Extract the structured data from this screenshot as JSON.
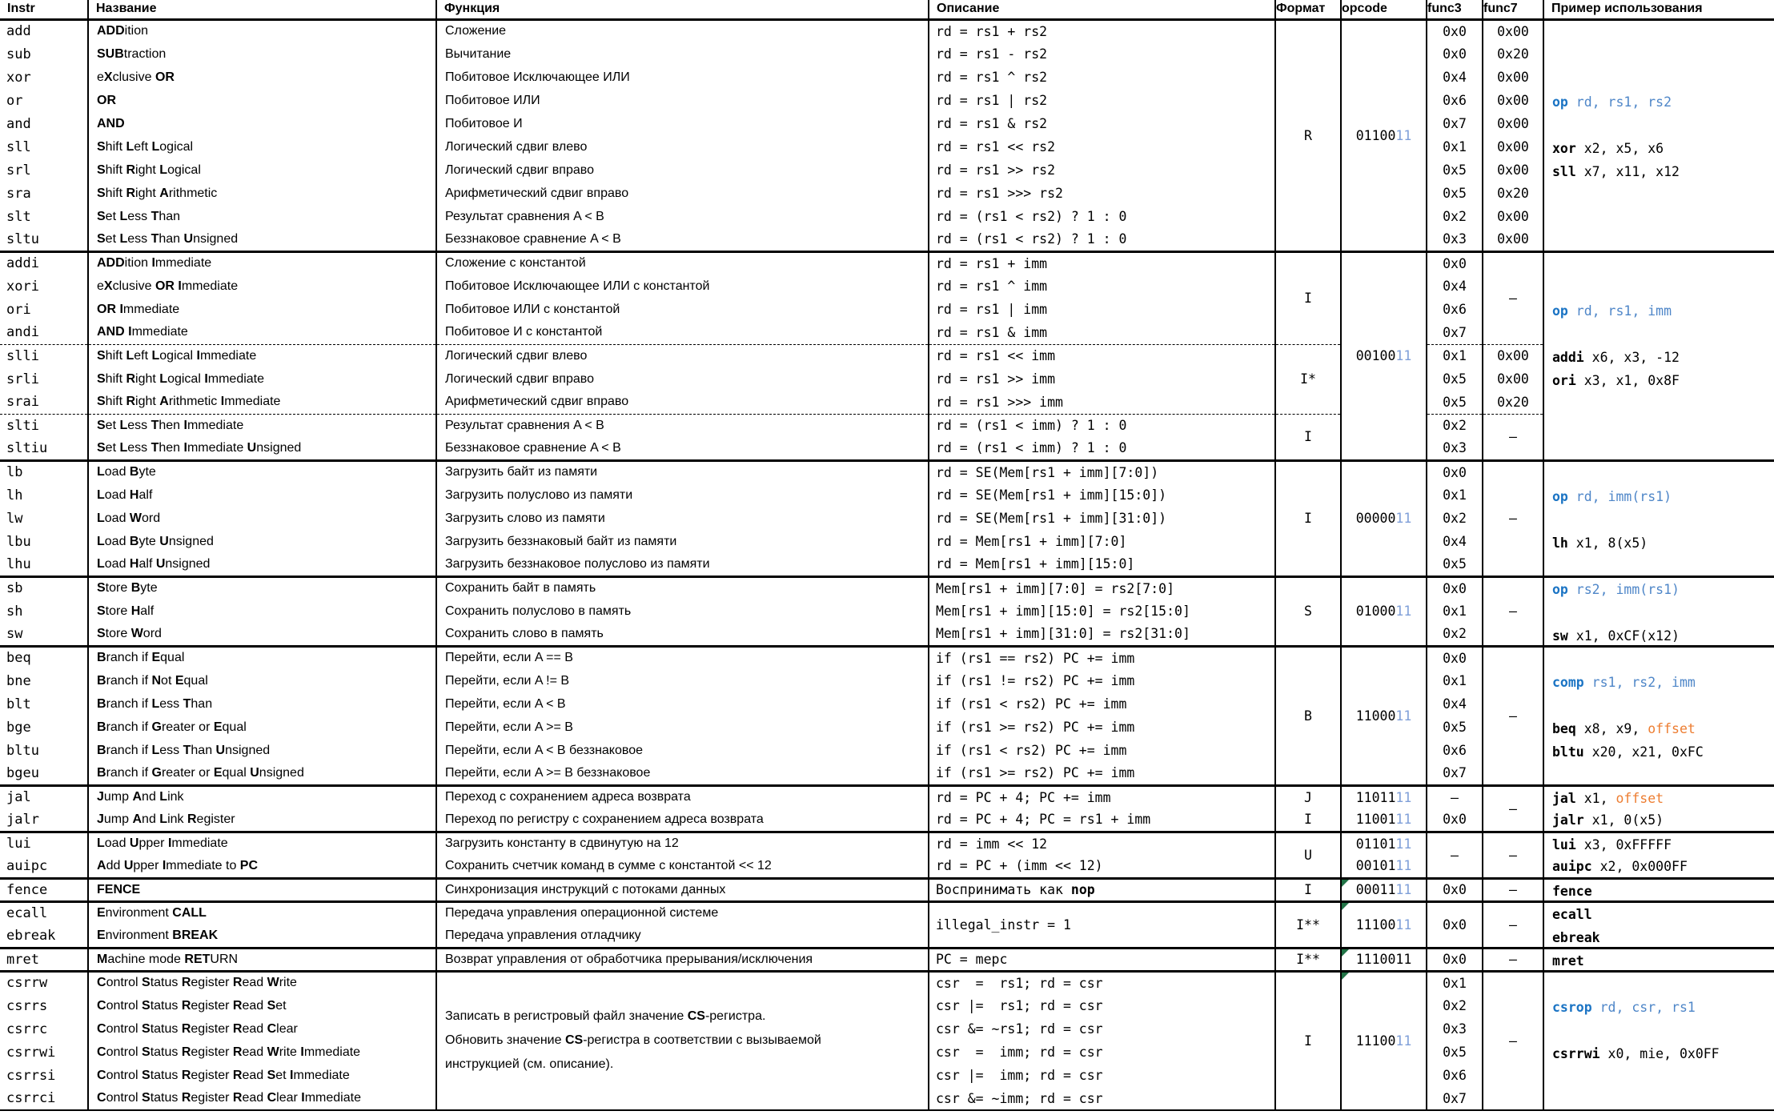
{
  "header": {
    "instr": "Instr",
    "name": "Название",
    "func": "Функция",
    "desc": "Описание",
    "fmt": "Формат",
    "opcode": "opcode",
    "func3": "func3",
    "func7": "func7",
    "example": "Пример использования"
  },
  "colors": {
    "keyword_blue": "#1B74C4",
    "argument_blue": "#4E86C8",
    "opcode_suffix_blue": "#7F9FD8",
    "offset_orange": "#ED7D31",
    "note_triangle_green": "#217346"
  },
  "dash": "–",
  "formats": {
    "r": "R",
    "i1": "I",
    "i2": "I*",
    "i3": "I",
    "load": "I",
    "s": "S",
    "b": "B",
    "j": "J",
    "jalr": "I",
    "u": "U",
    "fence": "I",
    "env": "I**",
    "mret": "I**",
    "csr": "I"
  },
  "opcodes": {
    "r": [
      {
        "t": "01100",
        "c": ""
      },
      {
        "t": "11",
        "c": "ob"
      }
    ],
    "i": [
      {
        "t": "00100",
        "c": ""
      },
      {
        "t": "11",
        "c": "ob"
      }
    ],
    "load": [
      {
        "t": "00000",
        "c": ""
      },
      {
        "t": "11",
        "c": "ob"
      }
    ],
    "s": [
      {
        "t": "01000",
        "c": ""
      },
      {
        "t": "11",
        "c": "ob"
      }
    ],
    "b": [
      {
        "t": "11000",
        "c": ""
      },
      {
        "t": "11",
        "c": "ob"
      }
    ],
    "jal": [
      {
        "t": "11011",
        "c": ""
      },
      {
        "t": "11",
        "c": "ob"
      }
    ],
    "jalr": [
      {
        "t": "11001",
        "c": ""
      },
      {
        "t": "11",
        "c": "ob"
      }
    ],
    "lui": [
      {
        "t": "01101",
        "c": ""
      },
      {
        "t": "11",
        "c": "ob"
      }
    ],
    "auipc": [
      {
        "t": "00101",
        "c": ""
      },
      {
        "t": "11",
        "c": "ob"
      }
    ],
    "fence": [
      {
        "t": "00011",
        "c": ""
      },
      {
        "t": "11",
        "c": "ob"
      }
    ],
    "env": [
      {
        "t": "11100",
        "c": ""
      },
      {
        "t": "11",
        "c": "ob"
      }
    ],
    "mret": [
      {
        "t": "1110011",
        "c": ""
      }
    ],
    "csr": [
      {
        "t": "11100",
        "c": ""
      },
      {
        "t": "11",
        "c": "ob"
      }
    ]
  },
  "examples": {
    "r": [
      {
        "row": 4,
        "seg": [
          {
            "t": "op",
            "c": "kwb"
          },
          {
            "t": " rd, rs1, rs2",
            "c": "arg"
          }
        ]
      },
      {
        "row": 6,
        "seg": [
          {
            "t": "xor",
            "c": "kw"
          },
          {
            "t": " x2, x5, x6",
            "c": ""
          }
        ]
      },
      {
        "row": 7,
        "seg": [
          {
            "t": "sll",
            "c": "kw"
          },
          {
            "t": " x7, x11, x12",
            "c": ""
          }
        ]
      }
    ],
    "i": [
      {
        "row": 3,
        "seg": [
          {
            "t": "op",
            "c": "kwb"
          },
          {
            "t": " rd, rs1, imm",
            "c": "arg"
          }
        ]
      },
      {
        "row": 5,
        "seg": [
          {
            "t": "addi",
            "c": "kw"
          },
          {
            "t": " x6, x3, -12",
            "c": ""
          }
        ]
      },
      {
        "row": 6,
        "seg": [
          {
            "t": "ori",
            "c": "kw"
          },
          {
            "t": " x3, x1, 0x8F",
            "c": ""
          }
        ]
      }
    ],
    "load": [
      {
        "row": 2,
        "seg": [
          {
            "t": "op",
            "c": "kwb"
          },
          {
            "t": " rd, imm(rs1)",
            "c": "arg"
          }
        ]
      },
      {
        "row": 4,
        "seg": [
          {
            "t": "lh",
            "c": "kw"
          },
          {
            "t": " x1, 8(x5)",
            "c": ""
          }
        ]
      }
    ],
    "s": [
      {
        "row": 1,
        "seg": [
          {
            "t": "op",
            "c": "kwb"
          },
          {
            "t": " rs2, imm(rs1)",
            "c": "arg"
          }
        ]
      },
      {
        "row": 3,
        "seg": [
          {
            "t": "sw",
            "c": "kw"
          },
          {
            "t": " x1, 0xCF(x12)",
            "c": ""
          }
        ]
      }
    ],
    "b": [
      {
        "row": 2,
        "seg": [
          {
            "t": "comp",
            "c": "kwb"
          },
          {
            "t": " rs1, rs2, imm",
            "c": "arg"
          }
        ]
      },
      {
        "row": 4,
        "seg": [
          {
            "t": "beq",
            "c": "kw"
          },
          {
            "t": " x8, x9, ",
            "c": ""
          },
          {
            "t": "offset",
            "c": "o"
          }
        ]
      },
      {
        "row": 5,
        "seg": [
          {
            "t": "bltu",
            "c": "kw"
          },
          {
            "t": " x20, x21, 0xFC",
            "c": ""
          }
        ]
      }
    ],
    "jal": [
      {
        "row": 1,
        "seg": [
          {
            "t": "jal",
            "c": "kw"
          },
          {
            "t": " x1, ",
            "c": ""
          },
          {
            "t": "offset",
            "c": "o"
          }
        ]
      }
    ],
    "jalr": [
      {
        "row": 1,
        "seg": [
          {
            "t": "jalr",
            "c": "kw"
          },
          {
            "t": " x1, 0(x5)",
            "c": ""
          }
        ]
      }
    ],
    "lui": [
      {
        "row": 1,
        "seg": [
          {
            "t": "lui",
            "c": "kw"
          },
          {
            "t": " x3, 0xFFFFF",
            "c": ""
          }
        ]
      }
    ],
    "auipc": [
      {
        "row": 1,
        "seg": [
          {
            "t": "auipc",
            "c": "kw"
          },
          {
            "t": " x2, 0x000FF",
            "c": ""
          }
        ]
      }
    ],
    "fence": [
      {
        "row": 1,
        "seg": [
          {
            "t": "fence",
            "c": "kw"
          }
        ]
      }
    ],
    "env": [
      {
        "row": 1,
        "seg": [
          {
            "t": "ecall",
            "c": "kw"
          }
        ]
      },
      {
        "row": 2,
        "seg": [
          {
            "t": "ebreak",
            "c": "kw"
          }
        ]
      }
    ],
    "mret": [
      {
        "row": 1,
        "seg": [
          {
            "t": "mret",
            "c": "kw"
          }
        ]
      }
    ],
    "csr": [
      {
        "row": 2,
        "seg": [
          {
            "t": "csrop",
            "c": "kwb"
          },
          {
            "t": " rd, csr, rs1",
            "c": "arg"
          }
        ]
      },
      {
        "row": 4,
        "seg": [
          {
            "t": "csrrwi",
            "c": "kw"
          },
          {
            "t": " x0, mie, 0x0FF",
            "c": ""
          }
        ]
      }
    ]
  },
  "merged": {
    "env_desc": "illegal_instr = 1",
    "csr_func": "Записать в регистровый файл значение **CS**-регистра.\nОбновить значение **CS**-регистра в соответствии с вызываемой\nинструкцией (см. описание)."
  },
  "rows": {
    "add": {
      "instr": "add",
      "name": "**ADD**ition",
      "func": "Сложение",
      "desc": "rd = rs1 + rs2",
      "f3": "0x0",
      "f7": "0x00"
    },
    "sub": {
      "instr": "sub",
      "name": "**SUB**traction",
      "func": "Вычитание",
      "desc": "rd = rs1 - rs2",
      "f3": "0x0",
      "f7": "0x20"
    },
    "xor": {
      "instr": "xor",
      "name": "e**X**clusive **OR**",
      "func": "Побитовое Исключающее ИЛИ",
      "desc": "rd = rs1 ^ rs2",
      "f3": "0x4",
      "f7": "0x00"
    },
    "or": {
      "instr": "or",
      "name": "**OR**",
      "func": "Побитовое ИЛИ",
      "desc": "rd = rs1 | rs2",
      "f3": "0x6",
      "f7": "0x00"
    },
    "and": {
      "instr": "and",
      "name": "**AND**",
      "func": "Побитовое И",
      "desc": "rd = rs1 & rs2",
      "f3": "0x7",
      "f7": "0x00"
    },
    "sll": {
      "instr": "sll",
      "name": "**S**hift **L**eft **L**ogical",
      "func": "Логический сдвиг влево",
      "desc": "rd = rs1 << rs2",
      "f3": "0x1",
      "f7": "0x00"
    },
    "srl": {
      "instr": "srl",
      "name": "**S**hift **R**ight **L**ogical",
      "func": "Логический сдвиг вправо",
      "desc": "rd = rs1 >> rs2",
      "f3": "0x5",
      "f7": "0x00"
    },
    "sra": {
      "instr": "sra",
      "name": "**S**hift **R**ight **A**rithmetic",
      "func": "Арифметический сдвиг вправо",
      "desc": "rd = rs1 >>> rs2",
      "f3": "0x5",
      "f7": "0x20"
    },
    "slt": {
      "instr": "slt",
      "name": "**S**et **L**ess **T**han",
      "func": "Результат сравнения A < B",
      "desc": "rd = (rs1 < rs2) ? 1 : 0",
      "f3": "0x2",
      "f7": "0x00"
    },
    "sltu": {
      "instr": "sltu",
      "name": "**S**et **L**ess **T**han **U**nsigned",
      "func": "Беззнаковое сравнение A < B",
      "desc": "rd = (rs1 < rs2) ? 1 : 0",
      "f3": "0x3",
      "f7": "0x00"
    },
    "addi": {
      "instr": "addi",
      "name": "**ADD**ition **I**mmediate",
      "func": "Сложение с константой",
      "desc": "rd = rs1 + imm",
      "f3": "0x0"
    },
    "xori": {
      "instr": "xori",
      "name": "e**X**clusive **OR** **I**mmediate",
      "func": "Побитовое Исключающее ИЛИ с константой",
      "desc": "rd = rs1 ^ imm",
      "f3": "0x4"
    },
    "ori": {
      "instr": "ori",
      "name": "**OR** **I**mmediate",
      "func": "Побитовое ИЛИ с константой",
      "desc": "rd = rs1 | imm",
      "f3": "0x6"
    },
    "andi": {
      "instr": "andi",
      "name": "**AND** **I**mmediate",
      "func": "Побитовое И с константой",
      "desc": "rd = rs1 & imm",
      "f3": "0x7"
    },
    "slli": {
      "instr": "slli",
      "name": "**S**hift **L**eft **L**ogical **I**mmediate",
      "func": "Логический сдвиг влево",
      "desc": "rd = rs1 << imm",
      "f3": "0x1",
      "f7": "0x00"
    },
    "srli": {
      "instr": "srli",
      "name": "**S**hift **R**ight **L**ogical **I**mmediate",
      "func": "Логический сдвиг вправо",
      "desc": "rd = rs1 >> imm",
      "f3": "0x5",
      "f7": "0x00"
    },
    "srai": {
      "instr": "srai",
      "name": "**S**hift **R**ight **A**rithmetic **I**mmediate",
      "func": "Арифметический сдвиг вправо",
      "desc": "rd = rs1 >>> imm",
      "f3": "0x5",
      "f7": "0x20"
    },
    "slti": {
      "instr": "slti",
      "name": "**S**et **L**ess **T**hen **I**mmediate",
      "func": "Результат сравнения A < B",
      "desc": "rd = (rs1 < imm) ? 1 : 0",
      "f3": "0x2"
    },
    "sltiu": {
      "instr": "sltiu",
      "name": "**S**et **L**ess **T**hen **I**mmediate **U**nsigned",
      "func": "Беззнаковое сравнение A < B",
      "desc": "rd = (rs1 < imm) ? 1 : 0",
      "f3": "0x3"
    },
    "lb": {
      "instr": "lb",
      "name": "**L**oad **B**yte",
      "func": "Загрузить байт из памяти",
      "desc": "rd = SE(Mem[rs1 + imm][7:0])",
      "f3": "0x0"
    },
    "lh": {
      "instr": "lh",
      "name": "**L**oad **H**alf",
      "func": "Загрузить полуслово из памяти",
      "desc": "rd = SE(Mem[rs1 + imm][15:0])",
      "f3": "0x1"
    },
    "lw": {
      "instr": "lw",
      "name": "**L**oad **W**ord",
      "func": "Загрузить слово из памяти",
      "desc": "rd = SE(Mem[rs1 + imm][31:0])",
      "f3": "0x2"
    },
    "lbu": {
      "instr": "lbu",
      "name": "**L**oad **B**yte **U**nsigned",
      "func": "Загрузить беззнаковый байт из памяти",
      "desc": "rd = Mem[rs1 + imm][7:0]",
      "f3": "0x4"
    },
    "lhu": {
      "instr": "lhu",
      "name": "**L**oad **H**alf **U**nsigned",
      "func": "Загрузить беззнаковое полуслово из памяти",
      "desc": "rd = Mem[rs1 + imm][15:0]",
      "f3": "0x5"
    },
    "sb": {
      "instr": "sb",
      "name": "**S**tore **B**yte",
      "func": "Сохранить байт в память",
      "desc": "Mem[rs1 + imm][7:0] = rs2[7:0]",
      "f3": "0x0"
    },
    "sh": {
      "instr": "sh",
      "name": "**S**tore **H**alf",
      "func": "Сохранить полуслово в память",
      "desc": "Mem[rs1 + imm][15:0] = rs2[15:0]",
      "f3": "0x1"
    },
    "sw": {
      "instr": "sw",
      "name": "**S**tore **W**ord",
      "func": "Сохранить слово в память",
      "desc": "Mem[rs1 + imm][31:0] = rs2[31:0]",
      "f3": "0x2"
    },
    "beq": {
      "instr": "beq",
      "name": "**B**ranch if **E**qual",
      "func": "Перейти, если A == B",
      "desc": "if (rs1 == rs2) PC += imm",
      "f3": "0x0"
    },
    "bne": {
      "instr": "bne",
      "name": "**B**ranch if **N**ot **E**qual",
      "func": "Перейти, если A != B",
      "desc": "if (rs1 != rs2) PC += imm",
      "f3": "0x1"
    },
    "blt": {
      "instr": "blt",
      "name": "**B**ranch if **L**ess **T**han",
      "func": "Перейти, если A < B",
      "desc": "if (rs1 < rs2) PC += imm",
      "f3": "0x4"
    },
    "bge": {
      "instr": "bge",
      "name": "**B**ranch if **G**reater or **E**qual",
      "func": "Перейти, если A >= B",
      "desc": "if (rs1 >= rs2) PC += imm",
      "f3": "0x5"
    },
    "bltu": {
      "instr": "bltu",
      "name": "**B**ranch if **L**ess **T**han **U**nsigned",
      "func": "Перейти, если A < B беззнаковое",
      "desc": "if (rs1 < rs2) PC += imm",
      "f3": "0x6"
    },
    "bgeu": {
      "instr": "bgeu",
      "name": "**B**ranch if **G**reater or **E**qual **U**nsigned",
      "func": "Перейти, если A >= B беззнаковое",
      "desc": "if (rs1 >= rs2) PC += imm",
      "f3": "0x7"
    },
    "jal": {
      "instr": "jal",
      "name": "**J**ump **A**nd **L**ink",
      "func": "Переход с сохранением адреса возврата",
      "desc": "rd = PC + 4; PC += imm",
      "f3": "–"
    },
    "jalr": {
      "instr": "jalr",
      "name": "**J**ump **A**nd **L**ink **R**egister",
      "func": "Переход по регистру с сохранением адреса возврата",
      "desc": "rd = PC + 4; PC = rs1 + imm",
      "f3": "0x0"
    },
    "lui": {
      "instr": "lui",
      "name": "**L**oad **U**pper **I**mmediate",
      "func": "Загрузить константу в сдвинутую на 12",
      "desc": "rd = imm << 12"
    },
    "auipc": {
      "instr": "auipc",
      "name": "**A**dd **U**pper **I**mmediate to **PC**",
      "func": "Сохранить счетчик команд в сумме с константой << 12",
      "desc": "rd = PC + (imm << 12)"
    },
    "fence": {
      "instr": "fence",
      "name": "**FENCE**",
      "func": "Синхронизация инструкций с потоками данных",
      "desc": "Воспринимать как **nop**",
      "f3": "0x0"
    },
    "ecall": {
      "instr": "ecall",
      "name": "**E**nvironment **CALL**",
      "func": "Передача управления операционной системе",
      "f3": "0x0"
    },
    "ebreak": {
      "instr": "ebreak",
      "name": "**E**nvironment **BREAK**",
      "func": "Передача управления отладчику"
    },
    "mret": {
      "instr": "mret",
      "name": "**M**achine mode **RET**URN",
      "func": "Возврат управления от обработчика прерывания/исключения",
      "desc": "PC = mepc",
      "f3": "0x0"
    },
    "csrrw": {
      "instr": "csrrw",
      "name": "**C**ontrol **S**tatus **R**egister **R**ead **W**rite",
      "desc": "csr  =  rs1; rd = csr",
      "f3": "0x1"
    },
    "csrrs": {
      "instr": "csrrs",
      "name": "**C**ontrol **S**tatus **R**egister **R**ead **S**et",
      "desc": "csr |=  rs1; rd = csr",
      "f3": "0x2"
    },
    "csrrc": {
      "instr": "csrrc",
      "name": "**C**ontrol **S**tatus **R**egister **R**ead **C**lear",
      "desc": "csr &= ~rs1; rd = csr",
      "f3": "0x3"
    },
    "csrrwi": {
      "instr": "csrrwi",
      "name": "**C**ontrol **S**tatus **R**egister **R**ead **W**rite **I**mmediate",
      "desc": "csr  =  imm; rd = csr",
      "f3": "0x5"
    },
    "csrrsi": {
      "instr": "csrrsi",
      "name": "**C**ontrol **S**tatus **R**egister **R**ead **S**et **I**mmediate",
      "desc": "csr |=  imm; rd = csr",
      "f3": "0x6"
    },
    "csrrci": {
      "instr": "csrrci",
      "name": "**C**ontrol **S**tatus **R**egister **R**ead **C**lear **I**mmediate",
      "desc": "csr &= ~imm; rd = csr",
      "f3": "0x7"
    }
  }
}
